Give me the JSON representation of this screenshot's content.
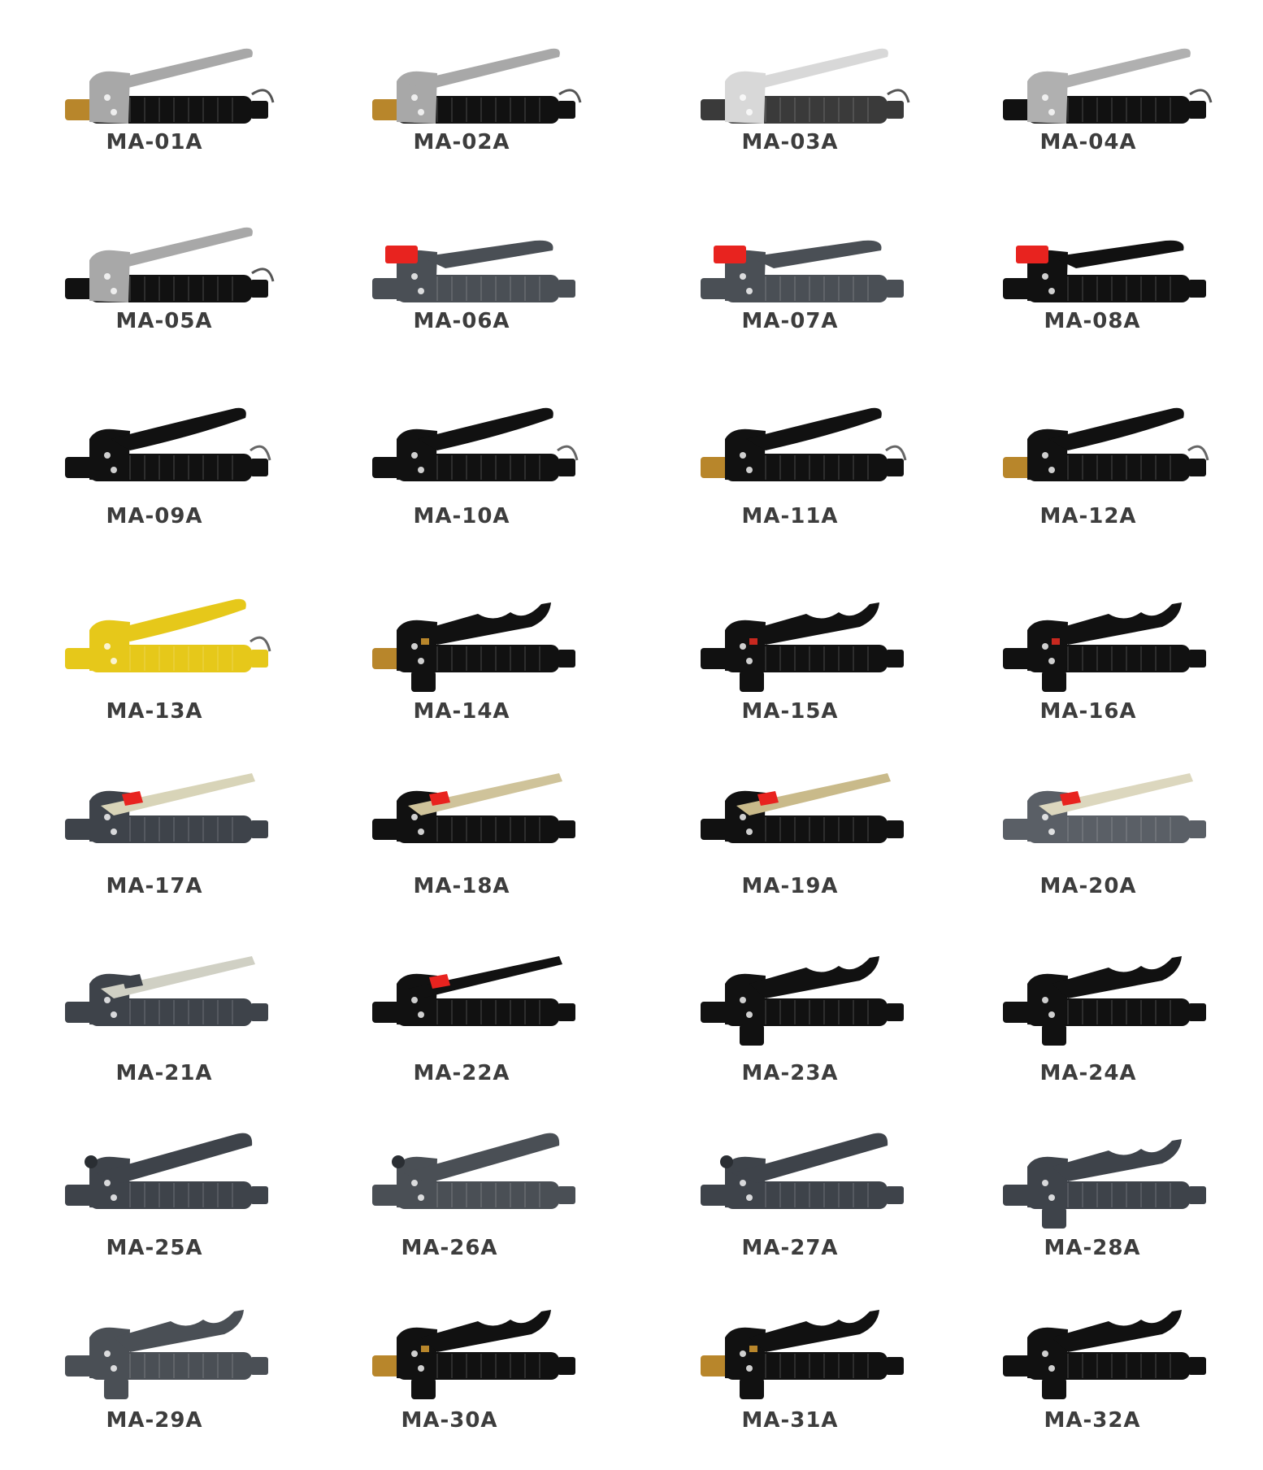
{
  "catalog": {
    "items": [
      {
        "code": "MA-01A",
        "style": "steel-lever",
        "colors": {
          "body": "#111111",
          "lever": "#a8a8a8",
          "accent": "#b8862b"
        }
      },
      {
        "code": "MA-02A",
        "style": "steel-lever",
        "colors": {
          "body": "#111111",
          "lever": "#a8a8a8",
          "accent": "#b8862b"
        }
      },
      {
        "code": "MA-03A",
        "style": "steel-lever",
        "colors": {
          "body": "#3a3a3a",
          "lever": "#d8d8d8",
          "accent": "#2a2a2a"
        }
      },
      {
        "code": "MA-04A",
        "style": "steel-lever",
        "colors": {
          "body": "#111111",
          "lever": "#b0b0b0",
          "accent": "#1a1a1a"
        }
      },
      {
        "code": "MA-05A",
        "style": "steel-lever",
        "colors": {
          "body": "#111111",
          "lever": "#a8a8a8",
          "accent": "#1a1a1a"
        }
      },
      {
        "code": "MA-06A",
        "style": "red-cap-plastic",
        "colors": {
          "body": "#4a4f55",
          "lever": "#4a4f55",
          "accent": "#e8231f"
        }
      },
      {
        "code": "MA-07A",
        "style": "red-cap-plastic",
        "colors": {
          "body": "#4a4f55",
          "lever": "#4a4f55",
          "accent": "#e8231f"
        }
      },
      {
        "code": "MA-08A",
        "style": "red-cap-plastic",
        "colors": {
          "body": "#111111",
          "lever": "#111111",
          "accent": "#e8231f"
        }
      },
      {
        "code": "MA-09A",
        "style": "hook-lever",
        "colors": {
          "body": "#111111",
          "lever": "#111111",
          "accent": "#222222"
        }
      },
      {
        "code": "MA-10A",
        "style": "hook-lever",
        "colors": {
          "body": "#111111",
          "lever": "#111111",
          "accent": "#222222"
        }
      },
      {
        "code": "MA-11A",
        "style": "hook-lever",
        "colors": {
          "body": "#111111",
          "lever": "#111111",
          "accent": "#b8862b"
        }
      },
      {
        "code": "MA-12A",
        "style": "hook-lever",
        "colors": {
          "body": "#111111",
          "lever": "#111111",
          "accent": "#b8862b"
        }
      },
      {
        "code": "MA-13A",
        "style": "hook-lever",
        "colors": {
          "body": "#e6c81a",
          "lever": "#e6c81a",
          "accent": "#d9b814"
        }
      },
      {
        "code": "MA-14A",
        "style": "wavy-lever",
        "colors": {
          "body": "#111111",
          "lever": "#111111",
          "accent": "#b8862b"
        }
      },
      {
        "code": "MA-15A",
        "style": "wavy-lever",
        "colors": {
          "body": "#111111",
          "lever": "#111111",
          "accent": "#c8281f"
        }
      },
      {
        "code": "MA-16A",
        "style": "wavy-lever",
        "colors": {
          "body": "#111111",
          "lever": "#111111",
          "accent": "#c8281f"
        }
      },
      {
        "code": "MA-17A",
        "style": "flat-lever-red",
        "colors": {
          "body": "#3e434a",
          "lever": "#d8d4b8",
          "accent": "#e8231f"
        }
      },
      {
        "code": "MA-18A",
        "style": "flat-lever-red",
        "colors": {
          "body": "#111111",
          "lever": "#cfc39a",
          "accent": "#e8231f"
        }
      },
      {
        "code": "MA-19A",
        "style": "flat-lever-red",
        "colors": {
          "body": "#111111",
          "lever": "#c9ba8a",
          "accent": "#e8231f"
        }
      },
      {
        "code": "MA-20A",
        "style": "flat-lever-red",
        "colors": {
          "body": "#5a5f66",
          "lever": "#dcd7be",
          "accent": "#e8231f"
        }
      },
      {
        "code": "MA-21A",
        "style": "flat-lever-red",
        "colors": {
          "body": "#3e434a",
          "lever": "#d0d0c4",
          "accent": "#3e434a"
        }
      },
      {
        "code": "MA-22A",
        "style": "flat-lever-red",
        "colors": {
          "body": "#111111",
          "lever": "#111111",
          "accent": "#e8231f"
        }
      },
      {
        "code": "MA-23A",
        "style": "wavy-lever",
        "colors": {
          "body": "#111111",
          "lever": "#111111",
          "accent": "#111111"
        }
      },
      {
        "code": "MA-24A",
        "style": "wavy-lever",
        "colors": {
          "body": "#111111",
          "lever": "#111111",
          "accent": "#111111"
        }
      },
      {
        "code": "MA-25A",
        "style": "top-grip",
        "colors": {
          "body": "#3e434a",
          "lever": "#3e434a",
          "accent": "#2a2e33"
        }
      },
      {
        "code": "MA-26A",
        "style": "top-grip",
        "colors": {
          "body": "#4a4f55",
          "lever": "#4a4f55",
          "accent": "#2a2e33"
        }
      },
      {
        "code": "MA-27A",
        "style": "top-grip",
        "colors": {
          "body": "#3e434a",
          "lever": "#3e434a",
          "accent": "#2a2e33"
        }
      },
      {
        "code": "MA-28A",
        "style": "wavy-lever",
        "colors": {
          "body": "#3e434a",
          "lever": "#3e434a",
          "accent": "#3e434a"
        }
      },
      {
        "code": "MA-29A",
        "style": "wavy-lever",
        "colors": {
          "body": "#4a4f55",
          "lever": "#4a4f55",
          "accent": "#4a4f55"
        }
      },
      {
        "code": "MA-30A",
        "style": "wavy-lever",
        "colors": {
          "body": "#111111",
          "lever": "#111111",
          "accent": "#b8862b"
        }
      },
      {
        "code": "MA-31A",
        "style": "wavy-lever",
        "colors": {
          "body": "#111111",
          "lever": "#111111",
          "accent": "#b8862b"
        }
      },
      {
        "code": "MA-32A",
        "style": "wavy-lever",
        "colors": {
          "body": "#111111",
          "lever": "#111111",
          "accent": "#111111"
        }
      }
    ]
  }
}
